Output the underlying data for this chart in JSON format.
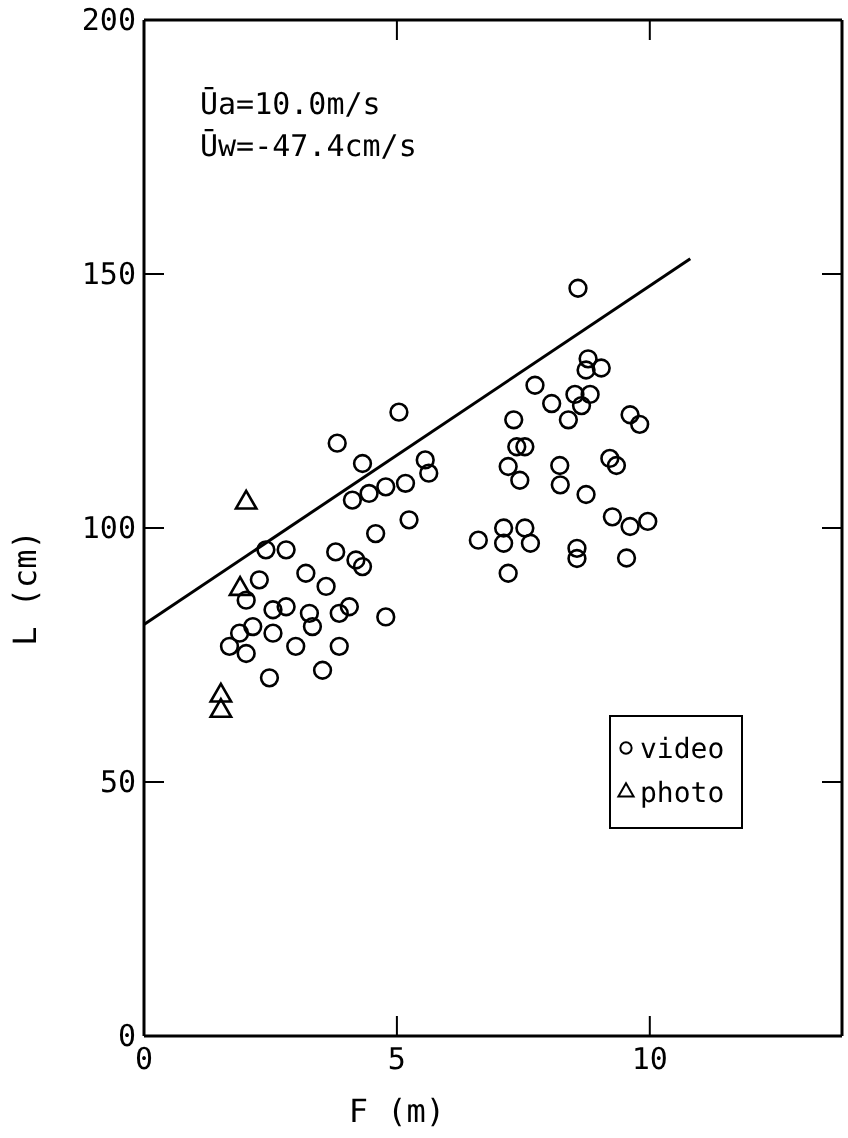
{
  "chart_data": {
    "type": "scatter",
    "xlabel": "F (m)",
    "ylabel": "L (cm)",
    "xlim": [
      0,
      13.8
    ],
    "ylim": [
      0,
      200
    ],
    "xticks": [
      0,
      5,
      10
    ],
    "yticks": [
      0,
      50,
      100,
      150,
      200
    ],
    "grid": false,
    "legend": "right",
    "annotations": [
      "Ūa=10.0m/s",
      "Ūw=-47.4cm/s"
    ],
    "series": [
      {
        "name": "video",
        "marker": "circle",
        "color": "#000000",
        "x": [
          5.04,
          3.82,
          4.32,
          4.12,
          4.45,
          4.78,
          5.17,
          5.56,
          5.63,
          5.24,
          4.58,
          3.79,
          4.19,
          4.32,
          2.41,
          2.81,
          2.28,
          3.2,
          3.6,
          2.02,
          2.55,
          2.81,
          3.27,
          3.33,
          3.86,
          4.06,
          2.15,
          2.55,
          1.89,
          1.69,
          2.02,
          3.0,
          3.86,
          4.78,
          2.48,
          3.53,
          8.58,
          8.78,
          9.04,
          8.74,
          7.73,
          8.06,
          8.52,
          8.82,
          8.65,
          8.39,
          7.31,
          9.61,
          9.8,
          7.37,
          7.53,
          7.2,
          7.43,
          8.22,
          8.23,
          9.21,
          9.34,
          8.74,
          6.61,
          7.11,
          7.11,
          7.53,
          7.64,
          7.2,
          8.56,
          8.56,
          9.54,
          9.26,
          9.61,
          9.96
        ],
        "values": [
          122.8,
          116.7,
          112.7,
          105.5,
          106.8,
          108.1,
          108.8,
          113.4,
          110.8,
          101.6,
          98.9,
          95.3,
          93.7,
          92.4,
          95.7,
          95.7,
          89.8,
          91.1,
          88.5,
          85.8,
          83.9,
          84.5,
          83.2,
          80.6,
          83.2,
          84.5,
          80.6,
          79.3,
          79.3,
          76.7,
          75.3,
          76.7,
          76.7,
          82.5,
          70.5,
          72.0,
          147.2,
          133.3,
          131.5,
          131.1,
          128.1,
          124.5,
          126.3,
          126.3,
          124.1,
          121.3,
          121.3,
          122.3,
          120.4,
          116,
          116,
          112.1,
          109.4,
          112.3,
          108.5,
          113.7,
          112.3,
          106.6,
          97.6,
          100,
          97,
          100,
          97,
          91.1,
          96,
          94,
          94.1,
          102.2,
          100.3,
          101.3
        ]
      },
      {
        "name": "photo",
        "marker": "triangle",
        "color": "#000000",
        "x": [
          2.02,
          1.52,
          1.52,
          1.9
        ],
        "values": [
          105,
          67,
          64,
          88
        ]
      },
      {
        "type": "line",
        "line_style": "solid",
        "marker": "none",
        "color": "#000000",
        "x": [
          0,
          10.8
        ],
        "values": [
          81,
          153
        ]
      }
    ]
  }
}
